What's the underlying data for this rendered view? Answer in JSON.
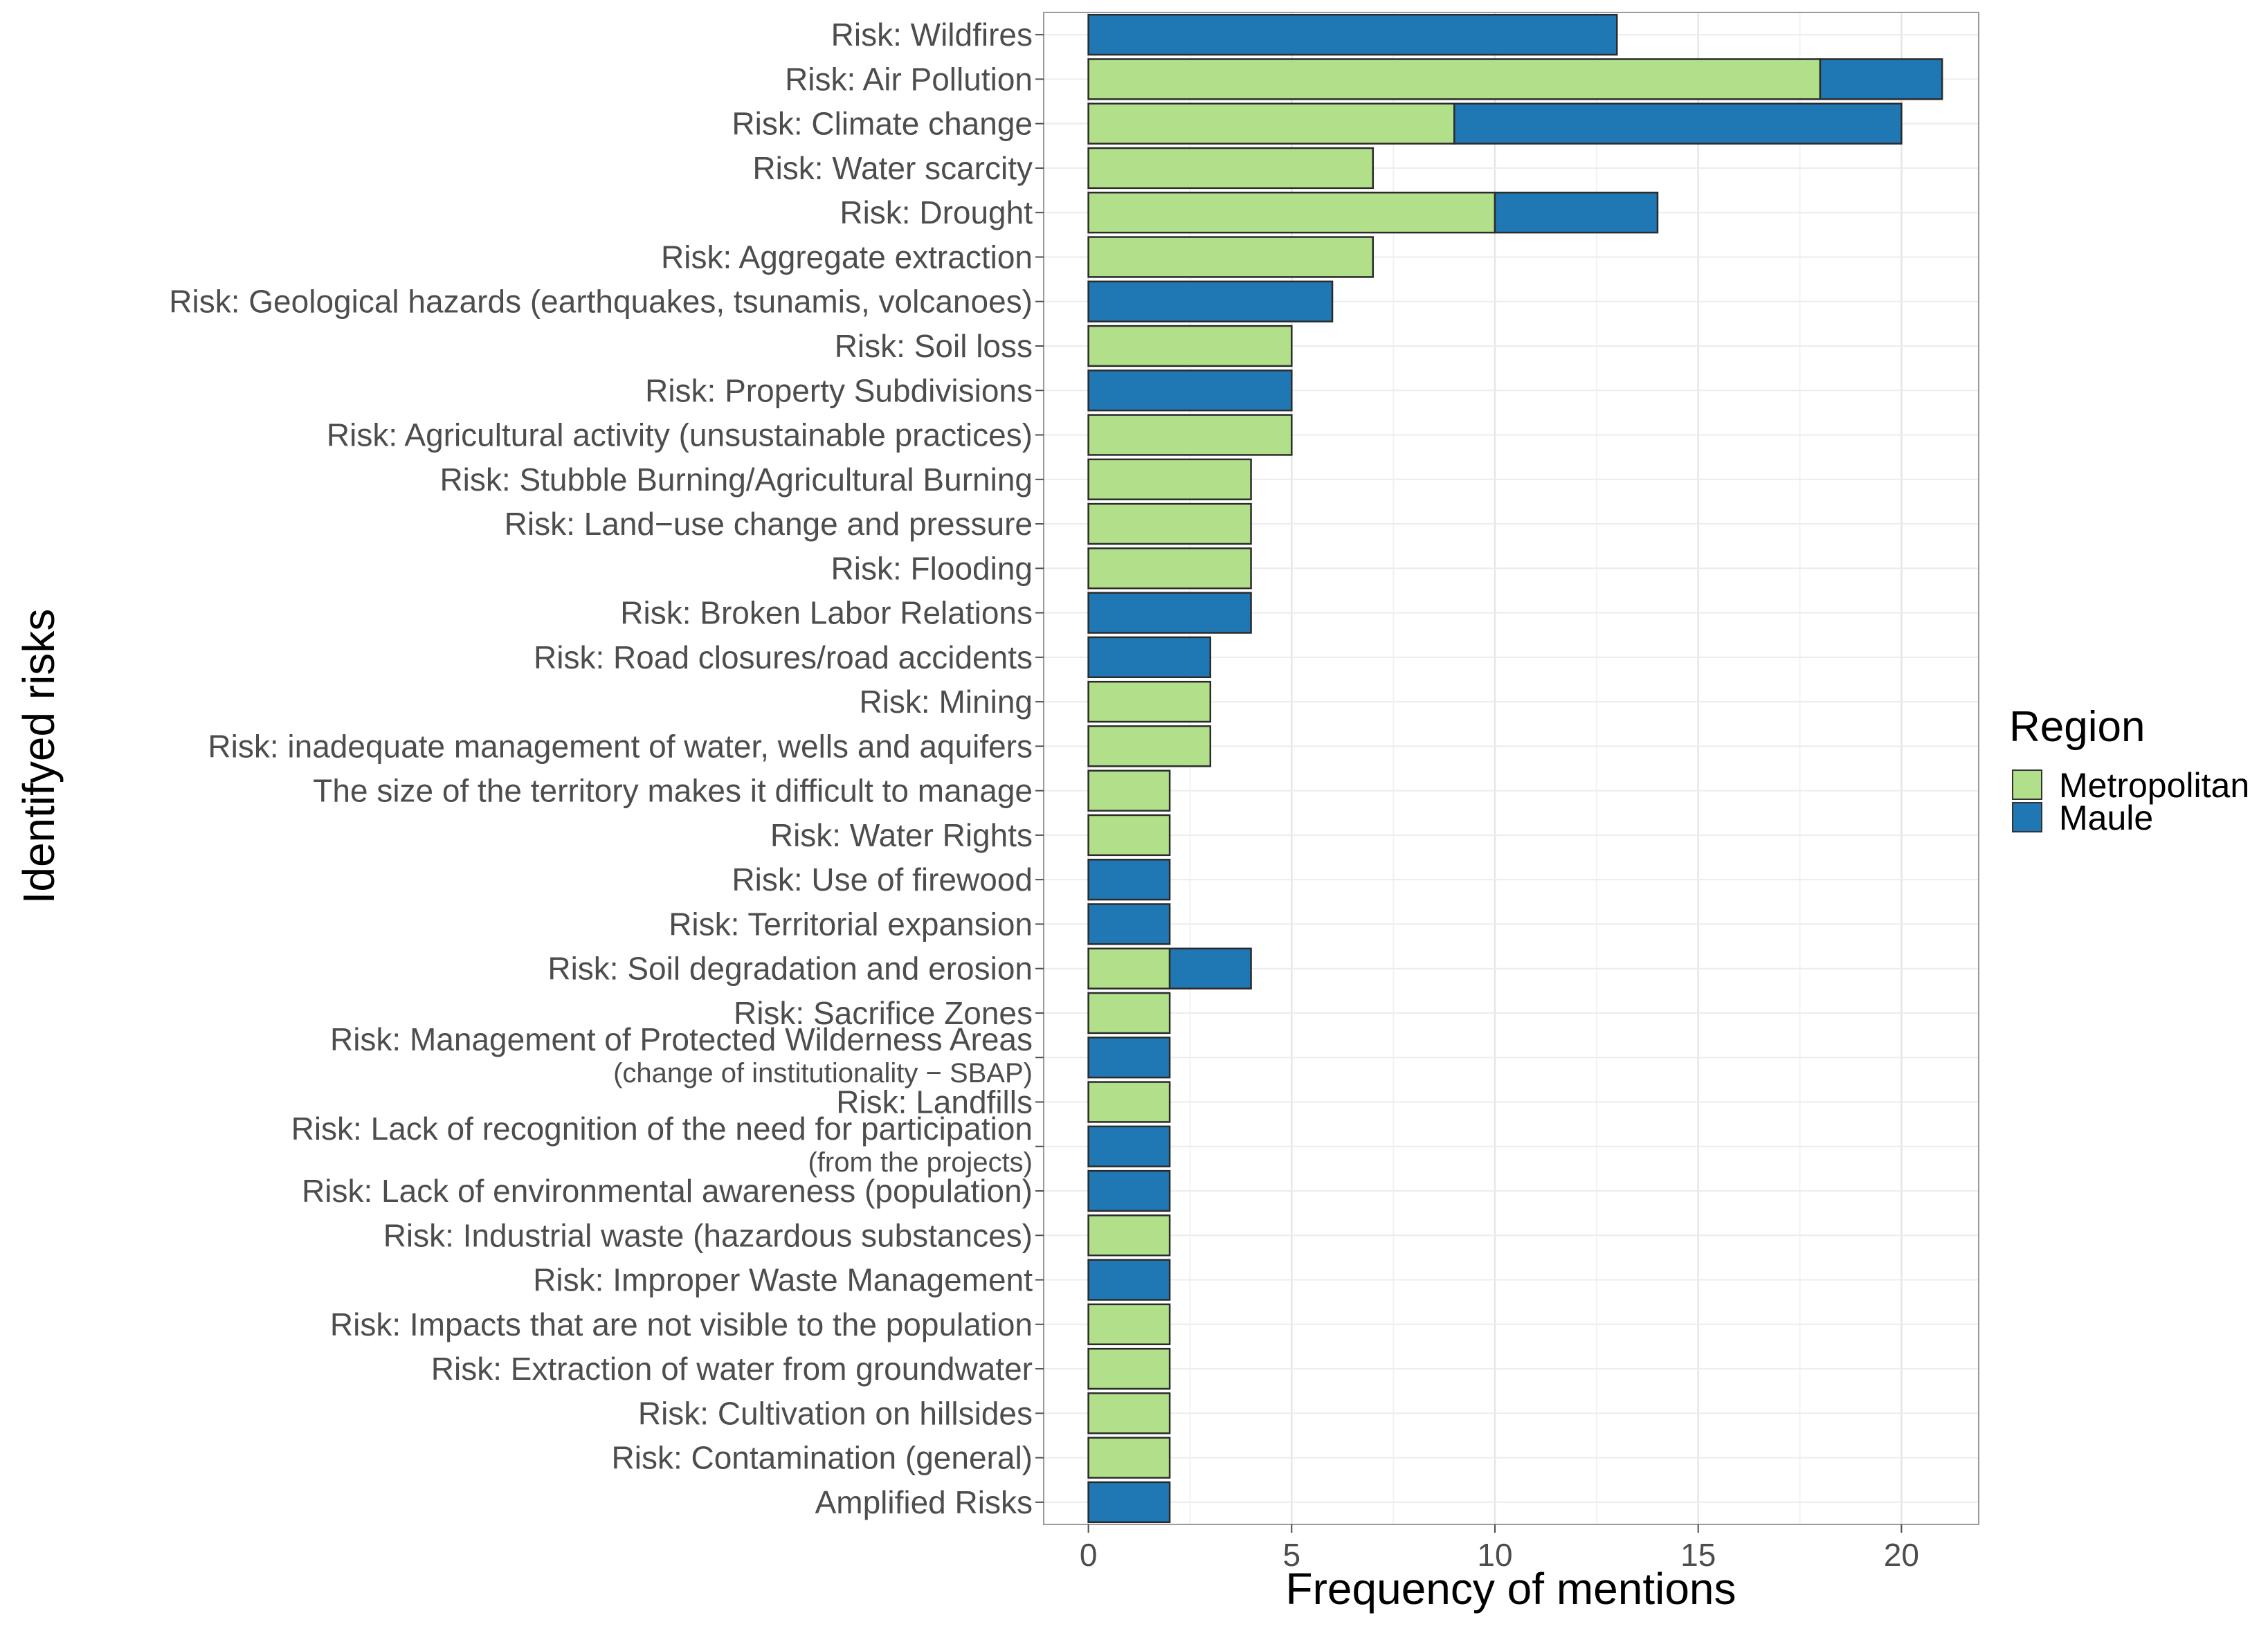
{
  "chart_data": {
    "type": "bar",
    "orientation": "horizontal",
    "stacked": true,
    "xlabel": "Frequency of mentions",
    "ylabel": "Identifyed risks",
    "xlim": [
      -1.1,
      21.9
    ],
    "x_ticks": [
      0,
      5,
      10,
      15,
      20
    ],
    "grid": true,
    "legend": {
      "title": "Region",
      "position": "right",
      "entries": [
        "Metropolitan",
        "Maule"
      ]
    },
    "colors": {
      "Metropolitan": "#b2df8a",
      "Maule": "#1f78b4"
    },
    "categories": [
      {
        "label": "Risk: Wildfires"
      },
      {
        "label": "Risk: Air Pollution"
      },
      {
        "label": "Risk: Climate change"
      },
      {
        "label": "Risk: Water scarcity"
      },
      {
        "label": "Risk: Drought"
      },
      {
        "label": "Risk: Aggregate extraction"
      },
      {
        "label": "Risk: Geological hazards (earthquakes, tsunamis, volcanoes)"
      },
      {
        "label": "Risk: Soil loss"
      },
      {
        "label": "Risk: Property Subdivisions"
      },
      {
        "label": "Risk: Agricultural activity (unsustainable practices)"
      },
      {
        "label": "Risk: Stubble Burning/Agricultural Burning"
      },
      {
        "label": "Risk: Land−use change and pressure"
      },
      {
        "label": "Risk: Flooding"
      },
      {
        "label": "Risk: Broken Labor Relations"
      },
      {
        "label": "Risk: Road closures/road accidents"
      },
      {
        "label": "Risk: Mining"
      },
      {
        "label": "Risk: inadequate management of water, wells and aquifers"
      },
      {
        "label": "The size of the territory makes it difficult to manage"
      },
      {
        "label": "Risk: Water Rights"
      },
      {
        "label": "Risk: Use of firewood"
      },
      {
        "label": "Risk: Territorial expansion"
      },
      {
        "label": "Risk: Soil degradation and erosion"
      },
      {
        "label": "Risk: Sacrifice Zones"
      },
      {
        "label": "Risk: Management of Protected Wilderness Areas",
        "sub": "(change of institutionality − SBAP)"
      },
      {
        "label": "Risk: Landfills"
      },
      {
        "label": "Risk: Lack of recognition of the need for participation",
        "sub": "(from the projects)"
      },
      {
        "label": "Risk: Lack of environmental awareness (population)"
      },
      {
        "label": "Risk: Industrial waste (hazardous substances)"
      },
      {
        "label": "Risk: Improper Waste Management"
      },
      {
        "label": "Risk: Impacts that are not visible to the population"
      },
      {
        "label": "Risk: Extraction of water from groundwater"
      },
      {
        "label": "Risk: Cultivation on hillsides"
      },
      {
        "label": "Risk: Contamination (general)"
      },
      {
        "label": "Amplified Risks"
      }
    ],
    "series": [
      {
        "name": "Metropolitan",
        "values": [
          0,
          18,
          9,
          7,
          10,
          7,
          0,
          5,
          0,
          5,
          4,
          4,
          4,
          0,
          0,
          3,
          3,
          2,
          2,
          0,
          0,
          2,
          2,
          0,
          2,
          0,
          0,
          2,
          0,
          2,
          2,
          2,
          2,
          0
        ]
      },
      {
        "name": "Maule",
        "values": [
          13,
          3,
          11,
          0,
          4,
          0,
          6,
          0,
          5,
          0,
          0,
          0,
          0,
          4,
          3,
          0,
          0,
          0,
          0,
          2,
          2,
          2,
          0,
          2,
          0,
          2,
          2,
          0,
          2,
          0,
          0,
          0,
          0,
          2
        ]
      }
    ]
  }
}
